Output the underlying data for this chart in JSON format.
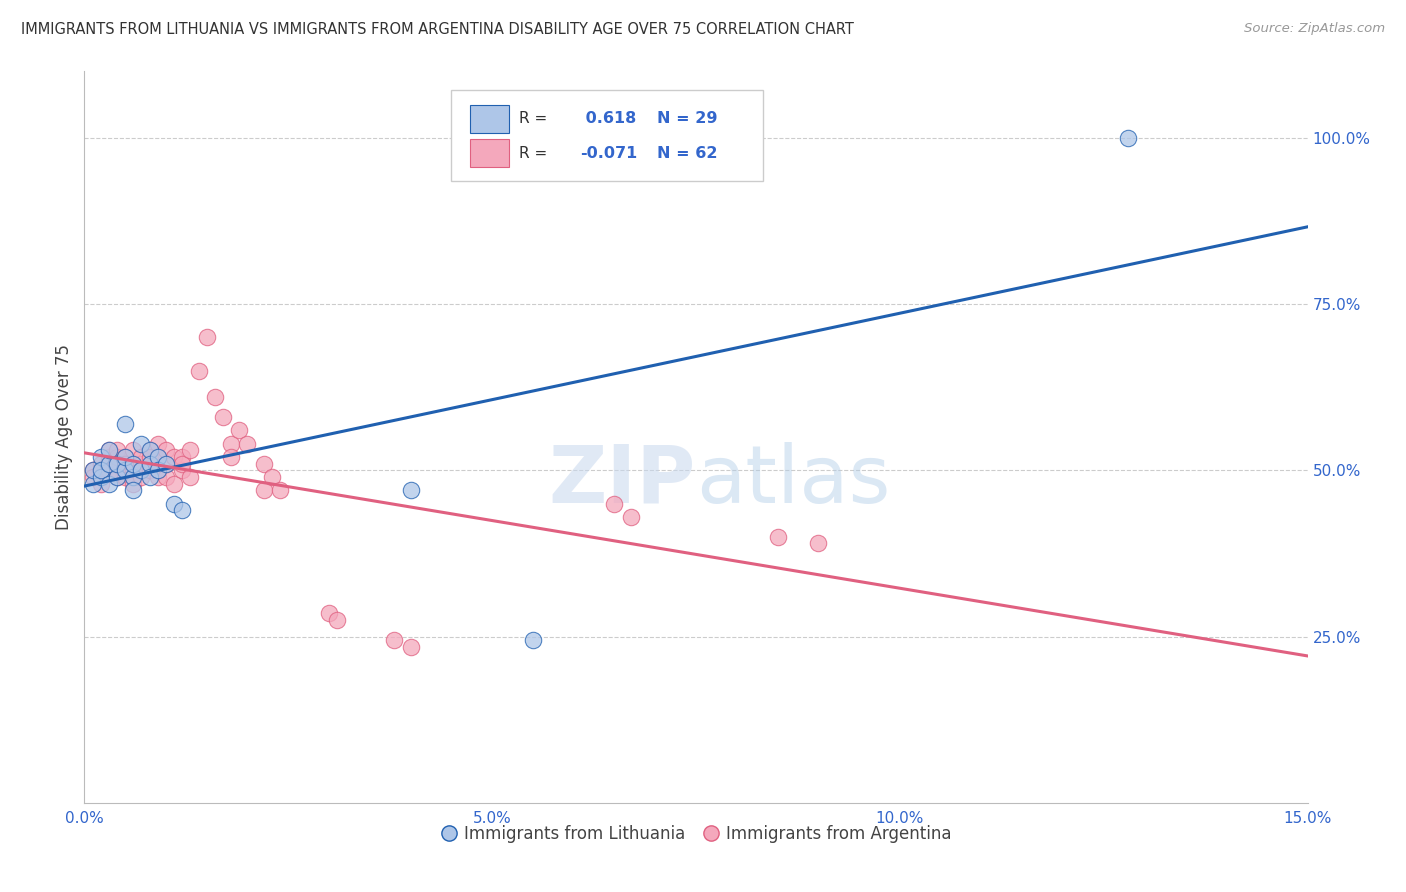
{
  "title": "IMMIGRANTS FROM LITHUANIA VS IMMIGRANTS FROM ARGENTINA DISABILITY AGE OVER 75 CORRELATION CHART",
  "source": "Source: ZipAtlas.com",
  "ylabel": "Disability Age Over 75",
  "xlim": [
    0.0,
    0.15
  ],
  "ylim": [
    0.0,
    1.1
  ],
  "xtick_positions": [
    0.0,
    0.05,
    0.1,
    0.15
  ],
  "xtick_labels": [
    "0.0%",
    "5.0%",
    "10.0%",
    "15.0%"
  ],
  "ytick_vals_right": [
    1.0,
    0.75,
    0.5,
    0.25
  ],
  "ytick_labels_right": [
    "100.0%",
    "75.0%",
    "50.0%",
    "25.0%"
  ],
  "R_lithuania": 0.618,
  "N_lithuania": 29,
  "R_argentina": -0.071,
  "N_argentina": 62,
  "watermark": "ZIPatlas",
  "lithuania_color": "#aec6e8",
  "argentina_color": "#f4a8bc",
  "line_lithuania_color": "#2060b0",
  "line_argentina_color": "#e06080",
  "lithuania_scatter": [
    [
      0.001,
      0.48
    ],
    [
      0.001,
      0.5
    ],
    [
      0.002,
      0.52
    ],
    [
      0.002,
      0.49
    ],
    [
      0.002,
      0.5
    ],
    [
      0.003,
      0.51
    ],
    [
      0.003,
      0.48
    ],
    [
      0.003,
      0.53
    ],
    [
      0.004,
      0.49
    ],
    [
      0.004,
      0.51
    ],
    [
      0.005,
      0.57
    ],
    [
      0.005,
      0.5
    ],
    [
      0.005,
      0.52
    ],
    [
      0.006,
      0.49
    ],
    [
      0.006,
      0.47
    ],
    [
      0.006,
      0.51
    ],
    [
      0.007,
      0.5
    ],
    [
      0.007,
      0.54
    ],
    [
      0.008,
      0.53
    ],
    [
      0.008,
      0.51
    ],
    [
      0.008,
      0.49
    ],
    [
      0.009,
      0.52
    ],
    [
      0.009,
      0.5
    ],
    [
      0.01,
      0.51
    ],
    [
      0.011,
      0.45
    ],
    [
      0.012,
      0.44
    ],
    [
      0.04,
      0.47
    ],
    [
      0.055,
      0.245
    ],
    [
      0.128,
      1.0
    ]
  ],
  "argentina_scatter": [
    [
      0.001,
      0.5
    ],
    [
      0.001,
      0.49
    ],
    [
      0.002,
      0.51
    ],
    [
      0.002,
      0.5
    ],
    [
      0.002,
      0.48
    ],
    [
      0.003,
      0.52
    ],
    [
      0.003,
      0.5
    ],
    [
      0.003,
      0.51
    ],
    [
      0.003,
      0.53
    ],
    [
      0.004,
      0.49
    ],
    [
      0.004,
      0.51
    ],
    [
      0.004,
      0.52
    ],
    [
      0.004,
      0.53
    ],
    [
      0.005,
      0.5
    ],
    [
      0.005,
      0.52
    ],
    [
      0.005,
      0.49
    ],
    [
      0.005,
      0.51
    ],
    [
      0.006,
      0.5
    ],
    [
      0.006,
      0.53
    ],
    [
      0.006,
      0.48
    ],
    [
      0.007,
      0.51
    ],
    [
      0.007,
      0.52
    ],
    [
      0.007,
      0.49
    ],
    [
      0.007,
      0.5
    ],
    [
      0.008,
      0.53
    ],
    [
      0.008,
      0.51
    ],
    [
      0.008,
      0.52
    ],
    [
      0.008,
      0.5
    ],
    [
      0.009,
      0.49
    ],
    [
      0.009,
      0.54
    ],
    [
      0.009,
      0.52
    ],
    [
      0.009,
      0.5
    ],
    [
      0.01,
      0.51
    ],
    [
      0.01,
      0.53
    ],
    [
      0.01,
      0.49
    ],
    [
      0.011,
      0.52
    ],
    [
      0.011,
      0.48
    ],
    [
      0.012,
      0.5
    ],
    [
      0.012,
      0.52
    ],
    [
      0.012,
      0.51
    ],
    [
      0.013,
      0.53
    ],
    [
      0.013,
      0.49
    ],
    [
      0.014,
      0.65
    ],
    [
      0.015,
      0.7
    ],
    [
      0.016,
      0.61
    ],
    [
      0.017,
      0.58
    ],
    [
      0.018,
      0.54
    ],
    [
      0.018,
      0.52
    ],
    [
      0.019,
      0.56
    ],
    [
      0.02,
      0.54
    ],
    [
      0.022,
      0.51
    ],
    [
      0.022,
      0.47
    ],
    [
      0.023,
      0.49
    ],
    [
      0.024,
      0.47
    ],
    [
      0.03,
      0.285
    ],
    [
      0.031,
      0.275
    ],
    [
      0.038,
      0.245
    ],
    [
      0.04,
      0.235
    ],
    [
      0.065,
      0.45
    ],
    [
      0.067,
      0.43
    ],
    [
      0.085,
      0.4
    ],
    [
      0.09,
      0.39
    ]
  ],
  "background_color": "#ffffff",
  "grid_color": "#cccccc"
}
